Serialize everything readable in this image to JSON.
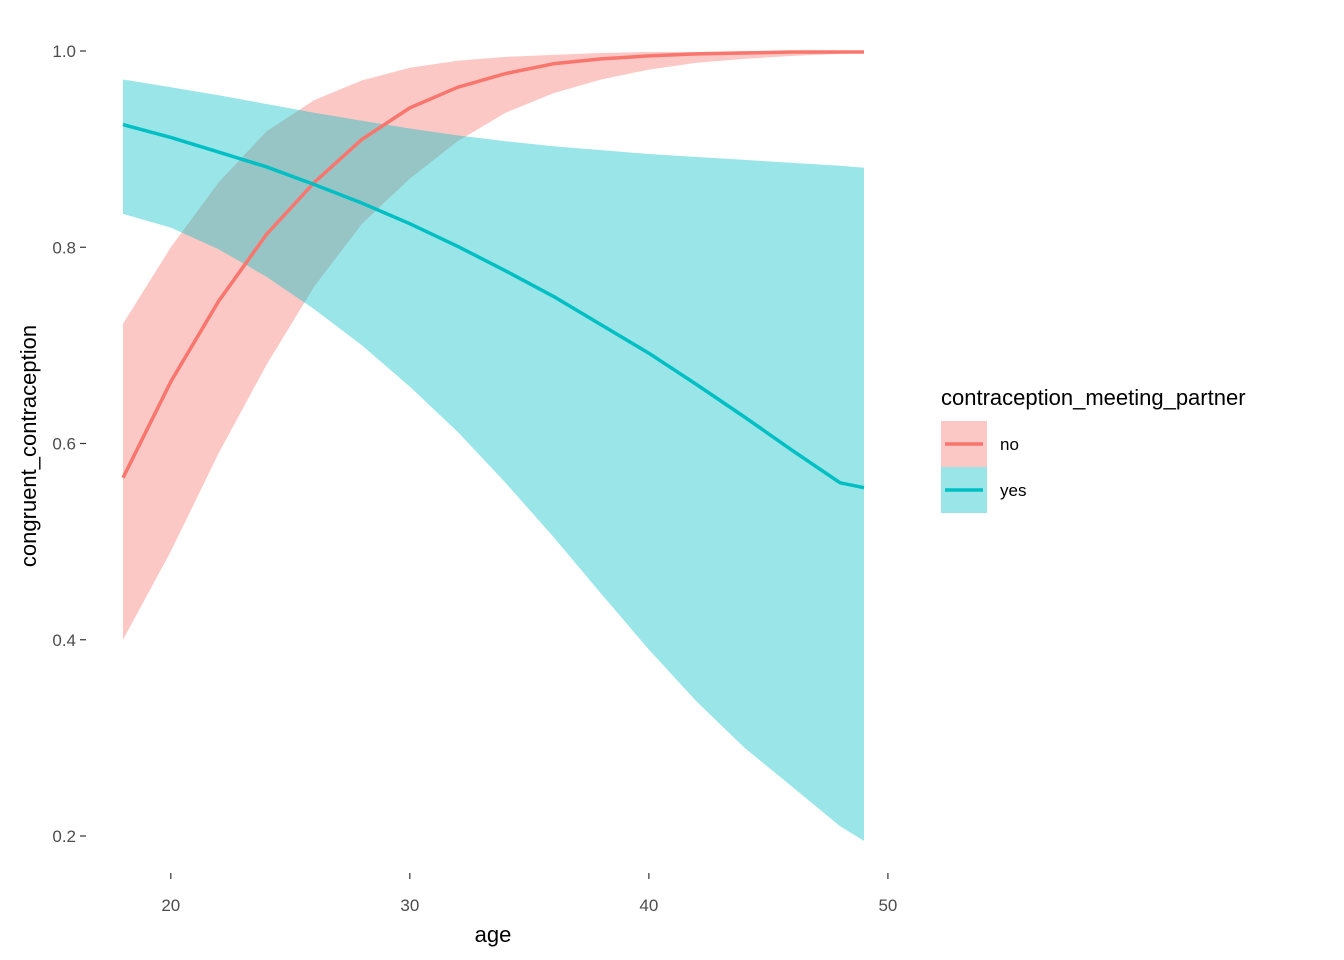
{
  "chart_data": {
    "type": "line",
    "xlabel": "age",
    "ylabel": "congruent_contraception",
    "xlim": [
      18,
      49
    ],
    "ylim": [
      0.17,
      1.03
    ],
    "x_ticks": [
      20,
      30,
      40,
      50
    ],
    "y_ticks": [
      0.2,
      0.4,
      0.6,
      0.8,
      1.0
    ],
    "x_tick_labels": [
      "20",
      "30",
      "40",
      "50"
    ],
    "y_tick_labels": [
      "0.2",
      "0.4",
      "0.6",
      "0.8",
      "1.0"
    ],
    "grid": false,
    "legend": {
      "title": "contraception_meeting_partner",
      "position": "right"
    },
    "series": [
      {
        "name": "no",
        "color": "#F8766D",
        "ribbon_color": "#F8766D",
        "x": [
          18,
          20,
          22,
          24,
          26,
          28,
          30,
          32,
          34,
          36,
          38,
          40,
          42,
          44,
          46,
          48,
          49
        ],
        "y": [
          0.565,
          0.663,
          0.745,
          0.813,
          0.866,
          0.91,
          0.942,
          0.963,
          0.977,
          0.987,
          0.992,
          0.995,
          0.997,
          0.998,
          0.999,
          0.999,
          0.999
        ],
        "ymin": [
          0.4,
          0.49,
          0.59,
          0.68,
          0.76,
          0.824,
          0.87,
          0.908,
          0.937,
          0.957,
          0.971,
          0.981,
          0.988,
          0.992,
          0.995,
          0.997,
          0.998
        ],
        "ymax": [
          0.722,
          0.8,
          0.866,
          0.918,
          0.95,
          0.97,
          0.983,
          0.99,
          0.994,
          0.996,
          0.998,
          0.999,
          0.999,
          1.0,
          1.0,
          1.0,
          1.0
        ]
      },
      {
        "name": "yes",
        "color": "#00BFC4",
        "ribbon_color": "#00BFC4",
        "x": [
          18,
          20,
          22,
          24,
          26,
          28,
          30,
          32,
          34,
          36,
          38,
          40,
          42,
          44,
          46,
          48,
          49
        ],
        "y": [
          0.925,
          0.912,
          0.897,
          0.882,
          0.864,
          0.845,
          0.824,
          0.801,
          0.776,
          0.75,
          0.721,
          0.692,
          0.66,
          0.627,
          0.593,
          0.56,
          0.555
        ],
        "ymin": [
          0.834,
          0.82,
          0.798,
          0.77,
          0.737,
          0.7,
          0.658,
          0.612,
          0.56,
          0.505,
          0.447,
          0.39,
          0.337,
          0.29,
          0.25,
          0.21,
          0.195
        ],
        "ymax": [
          0.971,
          0.963,
          0.955,
          0.946,
          0.937,
          0.929,
          0.921,
          0.914,
          0.908,
          0.903,
          0.899,
          0.895,
          0.892,
          0.889,
          0.886,
          0.883,
          0.881
        ]
      }
    ]
  }
}
